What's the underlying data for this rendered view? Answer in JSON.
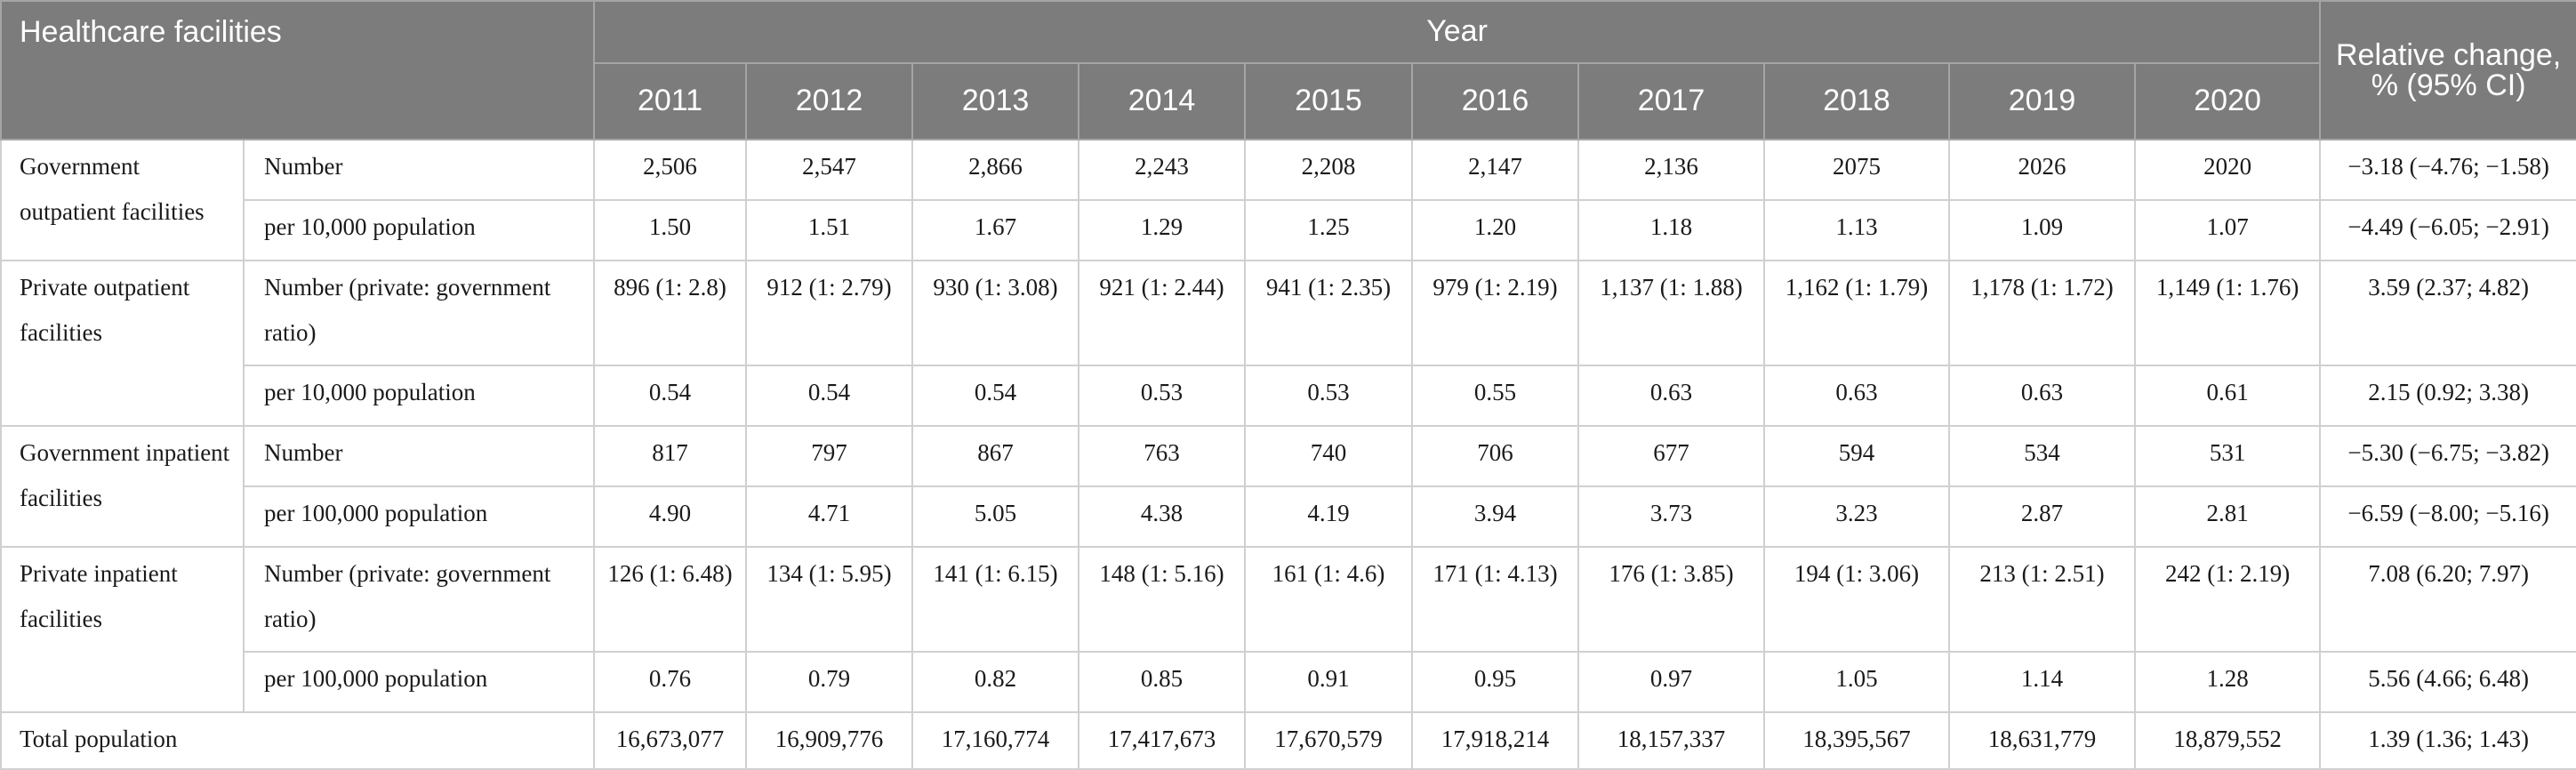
{
  "header": {
    "corner": "Healthcare facilities",
    "year_group": "Year",
    "years": [
      "2011",
      "2012",
      "2013",
      "2014",
      "2015",
      "2016",
      "2017",
      "2018",
      "2019",
      "2020"
    ],
    "relative_change": "Relative change, % (95% CI)"
  },
  "groups": [
    {
      "label": "Government outpatient facilities",
      "rows": [
        {
          "metric": "Number",
          "values": [
            "2,506",
            "2,547",
            "2,866",
            "2,243",
            "2,208",
            "2,147",
            "2,136",
            "2075",
            "2026",
            "2020"
          ],
          "change": "−3.18 (−4.76; −1.58)"
        },
        {
          "metric": "per 10,000 population",
          "values": [
            "1.50",
            "1.51",
            "1.67",
            "1.29",
            "1.25",
            "1.20",
            "1.18",
            "1.13",
            "1.09",
            "1.07"
          ],
          "change": "−4.49 (−6.05; −2.91)"
        }
      ]
    },
    {
      "label": "Private outpatient facilities",
      "rows": [
        {
          "metric": "Number (private: government ratio)",
          "values": [
            "896 (1: 2.8)",
            "912 (1: 2.79)",
            "930 (1: 3.08)",
            "921 (1: 2.44)",
            "941 (1: 2.35)",
            "979 (1: 2.19)",
            "1,137 (1: 1.88)",
            "1,162 (1: 1.79)",
            "1,178 (1: 1.72)",
            "1,149 (1: 1.76)"
          ],
          "change": "3.59 (2.37; 4.82)"
        },
        {
          "metric": "per 10,000 population",
          "values": [
            "0.54",
            "0.54",
            "0.54",
            "0.53",
            "0.53",
            "0.55",
            "0.63",
            "0.63",
            "0.63",
            "0.61"
          ],
          "change": "2.15 (0.92; 3.38)"
        }
      ]
    },
    {
      "label": "Government inpatient facilities",
      "rows": [
        {
          "metric": "Number",
          "values": [
            "817",
            "797",
            "867",
            "763",
            "740",
            "706",
            "677",
            "594",
            "534",
            "531"
          ],
          "change": "−5.30 (−6.75; −3.82)"
        },
        {
          "metric": "per 100,000 population",
          "values": [
            "4.90",
            "4.71",
            "5.05",
            "4.38",
            "4.19",
            "3.94",
            "3.73",
            "3.23",
            "2.87",
            "2.81"
          ],
          "change": "−6.59 (−8.00; −5.16)"
        }
      ]
    },
    {
      "label": "Private inpatient facilities",
      "rows": [
        {
          "metric": "Number (private: government ratio)",
          "values": [
            "126 (1: 6.48)",
            "134 (1: 5.95)",
            "141 (1: 6.15)",
            "148 (1: 5.16)",
            "161 (1: 4.6)",
            "171 (1: 4.13)",
            "176 (1: 3.85)",
            "194 (1: 3.06)",
            "213 (1: 2.51)",
            "242 (1: 2.19)"
          ],
          "change": "7.08 (6.20; 7.97)"
        },
        {
          "metric": "per 100,000 population",
          "values": [
            "0.76",
            "0.79",
            "0.82",
            "0.85",
            "0.91",
            "0.95",
            "0.97",
            "1.05",
            "1.14",
            "1.28"
          ],
          "change": "5.56 (4.66; 6.48)"
        }
      ]
    }
  ],
  "total": {
    "label": "Total population",
    "values": [
      "16,673,077",
      "16,909,776",
      "17,160,774",
      "17,417,673",
      "17,670,579",
      "17,918,214",
      "18,157,337",
      "18,395,567",
      "18,631,779",
      "18,879,552"
    ],
    "change": "1.39 (1.36; 1.43)"
  }
}
